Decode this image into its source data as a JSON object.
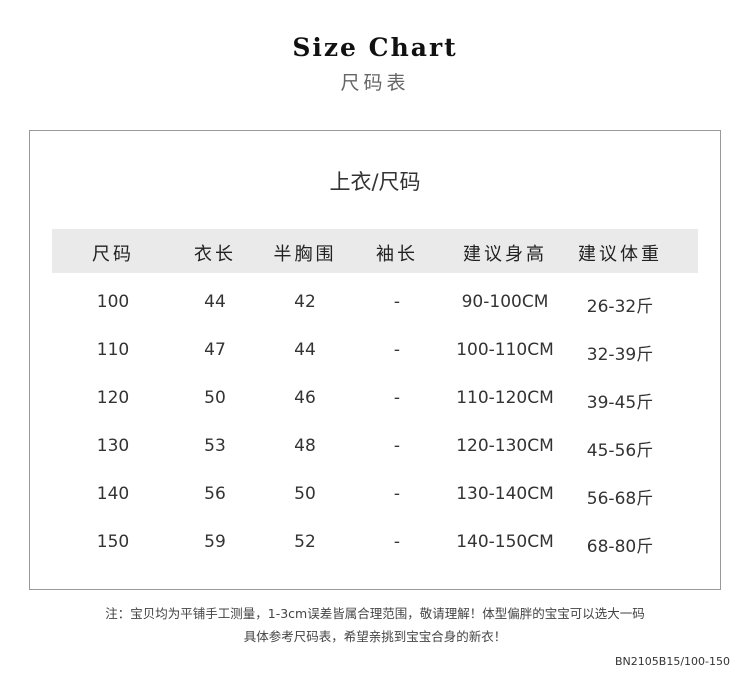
{
  "title": "Size Chart",
  "subtitle": "尺码表",
  "table_title": "上衣/尺码",
  "headers": [
    "尺码",
    "衣长",
    "半胸围",
    "袖长",
    "建议身高",
    "建议体重"
  ],
  "rows": [
    [
      "100",
      "44",
      "42",
      "-",
      "90-100CM",
      "26-32斤"
    ],
    [
      "110",
      "47",
      "44",
      "-",
      "100-110CM",
      "32-39斤"
    ],
    [
      "120",
      "50",
      "46",
      "-",
      "110-120CM",
      "39-45斤"
    ],
    [
      "130",
      "53",
      "48",
      "-",
      "120-130CM",
      "45-56斤"
    ],
    [
      "140",
      "56",
      "50",
      "-",
      "130-140CM",
      "56-68斤"
    ],
    [
      "150",
      "59",
      "52",
      "-",
      "140-150CM",
      "68-80斤"
    ]
  ],
  "note_line1": "注：宝贝均为平铺手工测量，1-3cm误差皆属合理范围，敬请理解！体型偏胖的宝宝可以选大一码",
  "note_line2": "具体参考尺码表，希望亲挑到宝宝合身的新衣！",
  "product_code": "BN2105B15/100-150"
}
